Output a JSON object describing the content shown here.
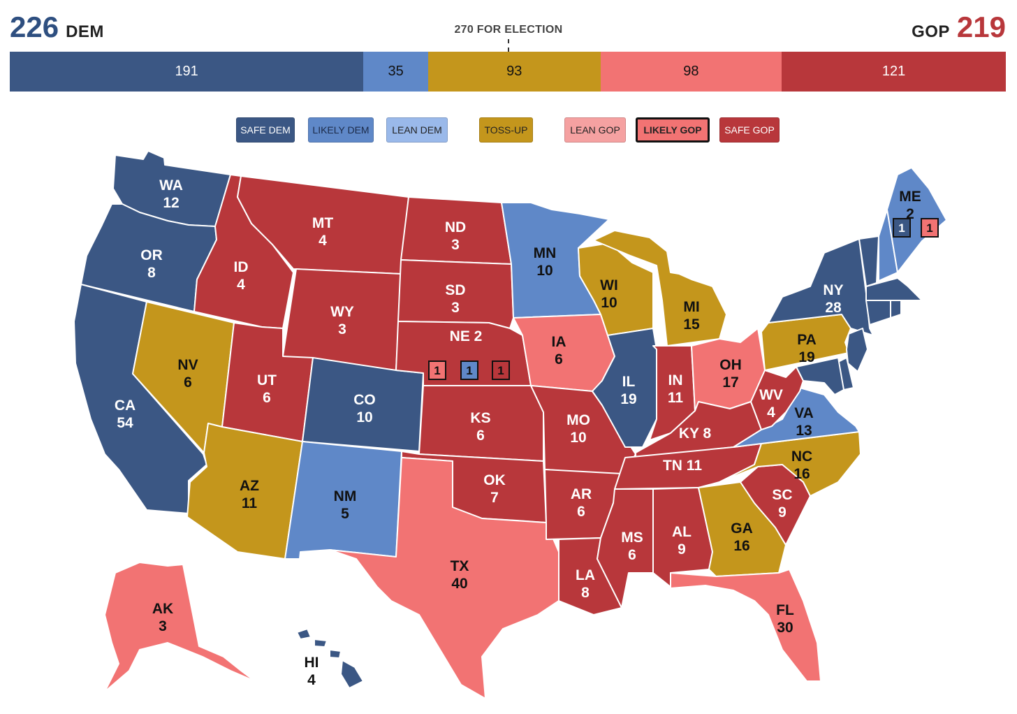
{
  "header": {
    "dem_total": "226",
    "dem_label": "DEM",
    "gop_total": "219",
    "gop_label": "GOP",
    "threshold_label": "270 FOR ELECTION"
  },
  "colors": {
    "safe_dem": "#3b5784",
    "likely_dem": "#5f88c8",
    "lean_dem": "#9ab9ea",
    "tossup": "#c4961c",
    "lean_gop": "#f5a1a1",
    "likely_gop": "#f27373",
    "safe_gop": "#b8373b",
    "dem_text": "#2e4f80",
    "gop_text": "#b8373b"
  },
  "bar": [
    {
      "rating": "safe_dem",
      "value": 191
    },
    {
      "rating": "likely_dem",
      "value": 35
    },
    {
      "rating": "tossup",
      "value": 93
    },
    {
      "rating": "likely_gop",
      "value": 98
    },
    {
      "rating": "safe_gop",
      "value": 121
    }
  ],
  "legend": [
    {
      "key": "safe_dem",
      "label": "SAFE DEM"
    },
    {
      "key": "likely_dem",
      "label": "LIKELY DEM"
    },
    {
      "key": "lean_dem",
      "label": "LEAN DEM"
    },
    {
      "key": "tossup",
      "label": "TOSS-UP"
    },
    {
      "key": "lean_gop",
      "label": "LEAN GOP"
    },
    {
      "key": "likely_gop",
      "label": "LIKELY GOP",
      "selected": true
    },
    {
      "key": "safe_gop",
      "label": "SAFE GOP"
    }
  ],
  "states": [
    {
      "abbr": "WA",
      "ev": "12",
      "rating": "safe_dem"
    },
    {
      "abbr": "OR",
      "ev": "8",
      "rating": "safe_dem"
    },
    {
      "abbr": "CA",
      "ev": "54",
      "rating": "safe_dem"
    },
    {
      "abbr": "NV",
      "ev": "6",
      "rating": "tossup"
    },
    {
      "abbr": "ID",
      "ev": "4",
      "rating": "safe_gop"
    },
    {
      "abbr": "MT",
      "ev": "4",
      "rating": "safe_gop"
    },
    {
      "abbr": "WY",
      "ev": "3",
      "rating": "safe_gop"
    },
    {
      "abbr": "UT",
      "ev": "6",
      "rating": "safe_gop"
    },
    {
      "abbr": "AZ",
      "ev": "11",
      "rating": "tossup"
    },
    {
      "abbr": "CO",
      "ev": "10",
      "rating": "safe_dem"
    },
    {
      "abbr": "NM",
      "ev": "5",
      "rating": "likely_dem"
    },
    {
      "abbr": "ND",
      "ev": "3",
      "rating": "safe_gop"
    },
    {
      "abbr": "SD",
      "ev": "3",
      "rating": "safe_gop"
    },
    {
      "abbr": "NE",
      "ev": "2",
      "rating": "safe_gop"
    },
    {
      "abbr": "KS",
      "ev": "6",
      "rating": "safe_gop"
    },
    {
      "abbr": "OK",
      "ev": "7",
      "rating": "safe_gop"
    },
    {
      "abbr": "TX",
      "ev": "40",
      "rating": "likely_gop"
    },
    {
      "abbr": "MN",
      "ev": "10",
      "rating": "likely_dem"
    },
    {
      "abbr": "IA",
      "ev": "6",
      "rating": "likely_gop"
    },
    {
      "abbr": "MO",
      "ev": "10",
      "rating": "safe_gop"
    },
    {
      "abbr": "AR",
      "ev": "6",
      "rating": "safe_gop"
    },
    {
      "abbr": "LA",
      "ev": "8",
      "rating": "safe_gop"
    },
    {
      "abbr": "WI",
      "ev": "10",
      "rating": "tossup"
    },
    {
      "abbr": "IL",
      "ev": "19",
      "rating": "safe_dem"
    },
    {
      "abbr": "MI",
      "ev": "15",
      "rating": "tossup"
    },
    {
      "abbr": "IN",
      "ev": "11",
      "rating": "safe_gop"
    },
    {
      "abbr": "OH",
      "ev": "17",
      "rating": "likely_gop"
    },
    {
      "abbr": "KY",
      "ev": "8",
      "rating": "safe_gop"
    },
    {
      "abbr": "TN",
      "ev": "11",
      "rating": "safe_gop"
    },
    {
      "abbr": "MS",
      "ev": "6",
      "rating": "safe_gop"
    },
    {
      "abbr": "AL",
      "ev": "9",
      "rating": "safe_gop"
    },
    {
      "abbr": "GA",
      "ev": "16",
      "rating": "tossup"
    },
    {
      "abbr": "FL",
      "ev": "30",
      "rating": "likely_gop"
    },
    {
      "abbr": "SC",
      "ev": "9",
      "rating": "safe_gop"
    },
    {
      "abbr": "NC",
      "ev": "16",
      "rating": "tossup"
    },
    {
      "abbr": "VA",
      "ev": "13",
      "rating": "likely_dem"
    },
    {
      "abbr": "WV",
      "ev": "4",
      "rating": "safe_gop"
    },
    {
      "abbr": "PA",
      "ev": "19",
      "rating": "tossup"
    },
    {
      "abbr": "NY",
      "ev": "28",
      "rating": "safe_dem"
    },
    {
      "abbr": "ME",
      "ev": "2",
      "rating": "likely_dem"
    },
    {
      "abbr": "AK",
      "ev": "3",
      "rating": "likely_gop"
    },
    {
      "abbr": "HI",
      "ev": "4",
      "rating": "safe_dem"
    }
  ],
  "northeast_small": [
    {
      "abbr": "VT",
      "rating": "safe_dem"
    },
    {
      "abbr": "NH",
      "rating": "likely_dem"
    },
    {
      "abbr": "MA",
      "rating": "safe_dem"
    },
    {
      "abbr": "RI",
      "rating": "safe_dem"
    },
    {
      "abbr": "CT",
      "rating": "safe_dem"
    },
    {
      "abbr": "NJ",
      "rating": "safe_dem"
    },
    {
      "abbr": "DE",
      "rating": "safe_dem"
    },
    {
      "abbr": "MD",
      "rating": "safe_dem"
    }
  ],
  "districts": [
    {
      "id": "ne-1",
      "value": "1",
      "rating": "likely_gop"
    },
    {
      "id": "ne-2",
      "value": "1",
      "rating": "likely_dem"
    },
    {
      "id": "ne-3",
      "value": "1",
      "rating": "safe_gop"
    },
    {
      "id": "me-1",
      "value": "1",
      "rating": "safe_dem"
    },
    {
      "id": "me-2",
      "value": "1",
      "rating": "likely_gop"
    }
  ]
}
